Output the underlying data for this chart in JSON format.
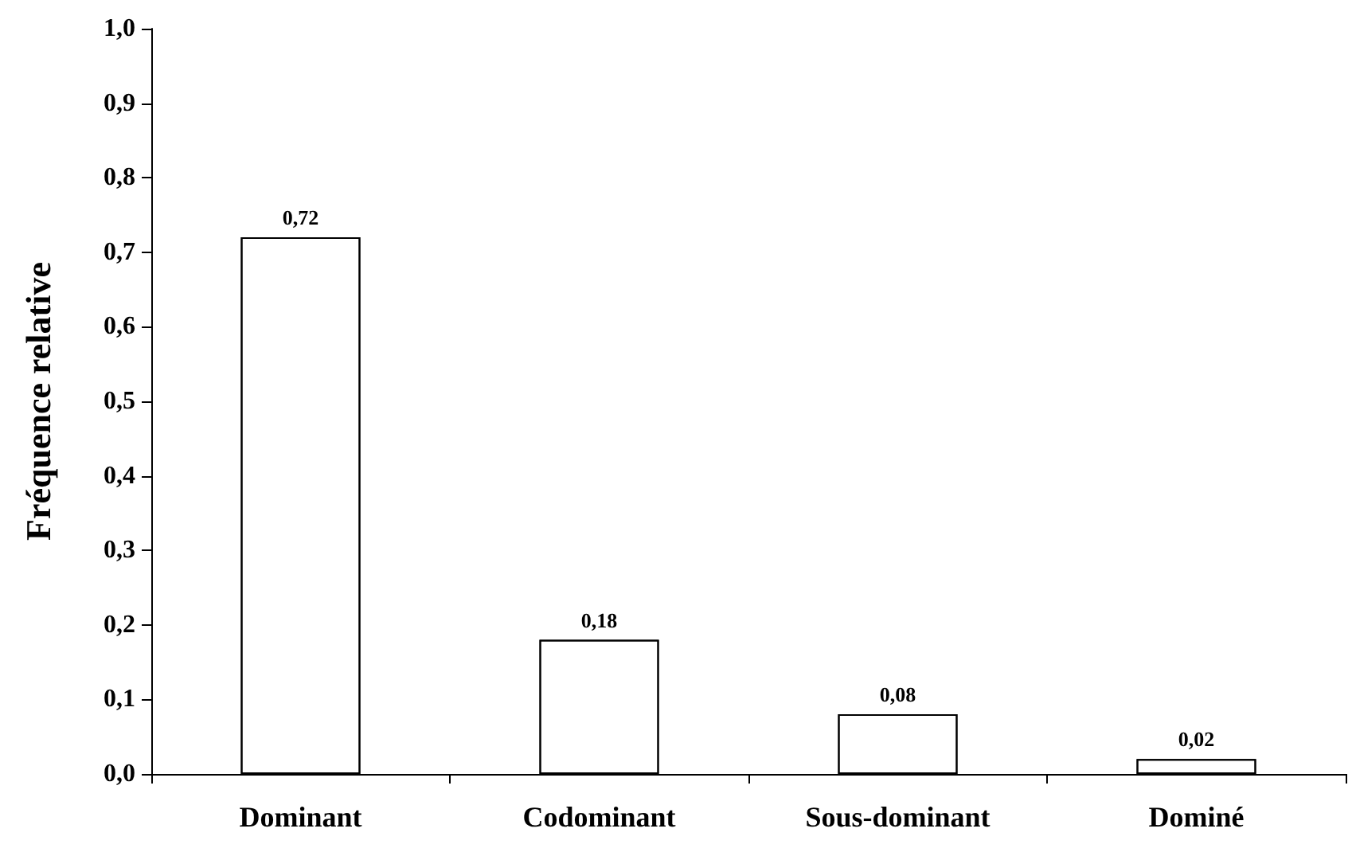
{
  "chart_data": {
    "type": "bar",
    "ylabel": "Fréquence relative",
    "categories": [
      "Dominant",
      "Codominant",
      "Sous-dominant",
      "Dominé"
    ],
    "values": [
      0.72,
      0.18,
      0.08,
      0.02
    ],
    "color": "#ffffff",
    "value_labels": [
      "0,72",
      "0,18",
      "0,08",
      "0,02"
    ],
    "ylim": [
      0,
      1
    ],
    "yticks": [
      {
        "value": 0,
        "label": "0,0"
      },
      {
        "value": 0.1,
        "label": "0,1"
      },
      {
        "value": 0.2,
        "label": "0,2"
      },
      {
        "value": 0.3,
        "label": "0,3"
      },
      {
        "value": 0.4,
        "label": "0,4"
      },
      {
        "value": 0.5,
        "label": "0,5"
      },
      {
        "value": 0.6,
        "label": "0,6"
      },
      {
        "value": 0.7,
        "label": "0,7"
      },
      {
        "value": 0.8,
        "label": "0,8"
      },
      {
        "value": 0.9,
        "label": "0,9"
      },
      {
        "value": 1,
        "label": "1,0"
      }
    ],
    "grid": false
  }
}
